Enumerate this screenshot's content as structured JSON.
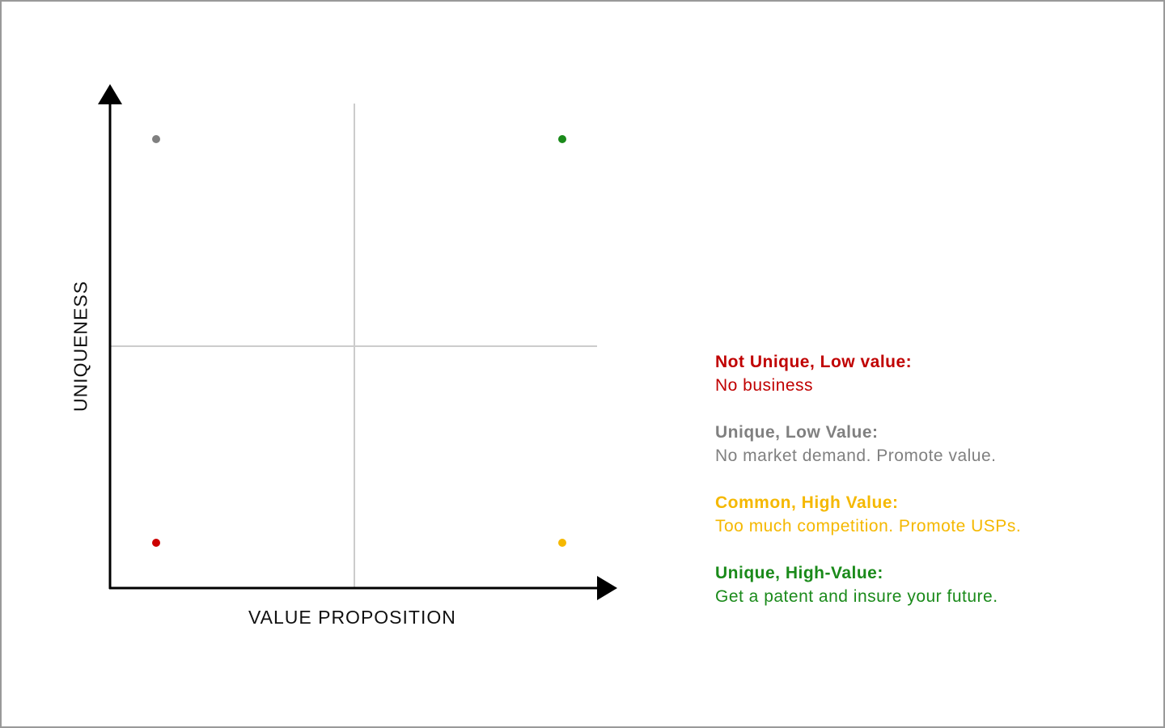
{
  "diagram": {
    "x_axis_label": "VALUE PROPOSITION",
    "y_axis_label": "UNIQUENESS",
    "quadrant_points": [
      {
        "quadrant": "top-left",
        "color": "#808080"
      },
      {
        "quadrant": "top-right",
        "color": "#1a8a1a"
      },
      {
        "quadrant": "bottom-left",
        "color": "#cc0000"
      },
      {
        "quadrant": "bottom-right",
        "color": "#f5b800"
      }
    ]
  },
  "legend": [
    {
      "title": "Not Unique, Low value:",
      "description": "No business",
      "color": "#c00000"
    },
    {
      "title": "Unique, Low Value:",
      "description": "No market demand. Promote value.",
      "color": "#808080"
    },
    {
      "title": "Common, High Value:",
      "description": "Too much competition. Promote USPs.",
      "color": "#f5b800"
    },
    {
      "title": "Unique, High-Value:",
      "description": "Get a patent and insure your future.",
      "color": "#1a8a1a"
    }
  ]
}
